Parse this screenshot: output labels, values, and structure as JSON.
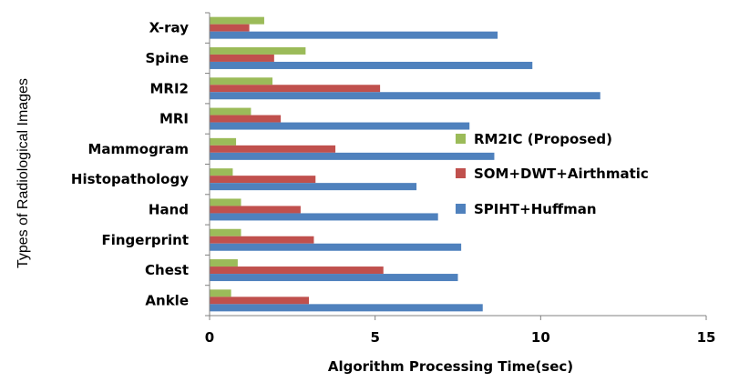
{
  "chart_data": {
    "type": "bar",
    "orientation": "horizontal",
    "title": "",
    "xlabel": "Algorithm Processing Time(sec)",
    "ylabel": "Types of Radiological Images",
    "xlim": [
      0,
      15
    ],
    "xticks": [
      0,
      5,
      10,
      15
    ],
    "grid": false,
    "legend_position": "right",
    "categories": [
      "X-ray",
      "Spine",
      "MRI2",
      "MRI",
      "Mammogram",
      "Histopathology",
      "Hand",
      "Fingerprint",
      "Chest",
      "Ankle"
    ],
    "series": [
      {
        "name": "RM2IC (Proposed)",
        "color": "#9BBB59",
        "values": [
          1.65,
          2.9,
          1.9,
          1.25,
          0.8,
          0.7,
          0.95,
          0.95,
          0.85,
          0.65
        ]
      },
      {
        "name": "SOM+DWT+Airthmatic",
        "color": "#C0504D",
        "values": [
          1.2,
          1.95,
          5.15,
          2.15,
          3.8,
          3.2,
          2.75,
          3.15,
          5.25,
          3.0
        ]
      },
      {
        "name": "SPIHT+Huffman",
        "color": "#4F81BD",
        "values": [
          8.7,
          9.75,
          11.8,
          7.85,
          8.6,
          6.25,
          6.9,
          7.6,
          7.5,
          8.25
        ]
      }
    ],
    "legend_order": [
      "RM2IC (Proposed)",
      "SOM+DWT+Airthmatic",
      "SPIHT+Huffman"
    ]
  }
}
